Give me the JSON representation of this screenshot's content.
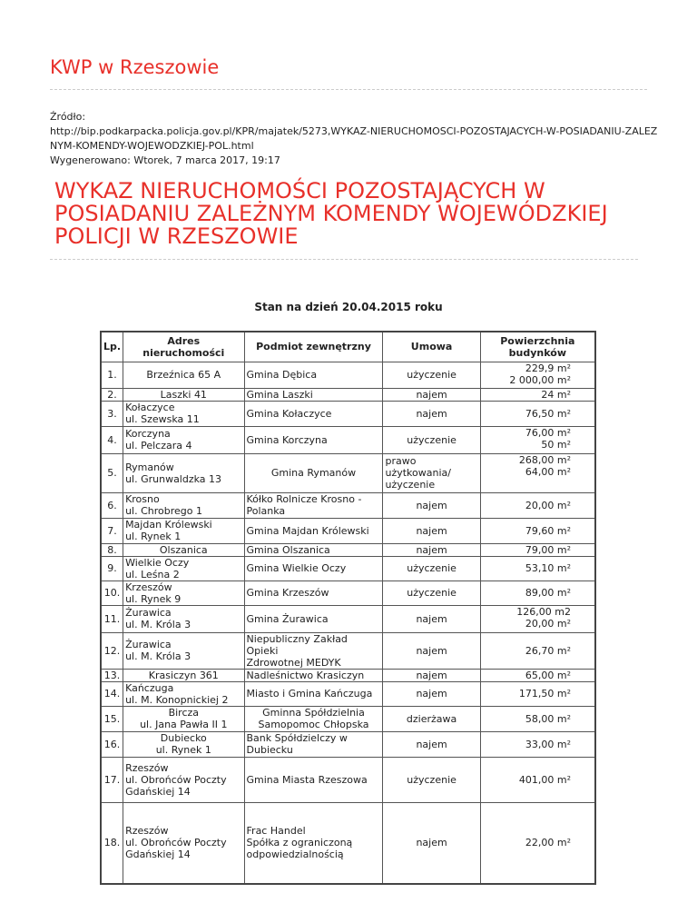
{
  "site_title": "KWP w Rzeszowie",
  "source_label": "Źródło:",
  "source_url": "http://bip.podkarpacka.policja.gov.pl/KPR/majatek/5273,WYKAZ-NIERUCHOMOSCI-POZOSTAJACYCH-W-POSIADANIU-ZALEZNYM-KOMENDY-WOJEWODZKIEJ-POL.html",
  "generated": "Wygenerowano: Wtorek, 7 marca 2017, 19:17",
  "title": "Wykaz nieruchomości pozostających w posiadaniu zależnym Komendy Wojewódzkiej Policji w Rzeszowie",
  "date_line": "Stan na dzień 20.04.2015 roku",
  "headers": [
    "Lp.",
    "Adres nieruchomości",
    "Podmiot zewnętrzny",
    "Umowa",
    "Powierzchnia budynków"
  ],
  "rows": [
    [
      "1.",
      "Brzeźnica 65 A",
      "Gmina Dębica",
      "użyczenie",
      "229,9 m²\n2 000,00 m²"
    ],
    [
      "2.",
      "Laszki 41",
      "Gmina Laszki",
      "najem",
      "24 m²"
    ],
    [
      "3.",
      "Kołaczyce\nul. Szewska 11",
      "Gmina Kołaczyce",
      "najem",
      "76,50 m²"
    ],
    [
      "4.",
      "Korczyna\nul. Pelczara 4",
      "Gmina Korczyna",
      "użyczenie",
      "76,00 m²\n50 m²"
    ],
    [
      "5.",
      "Rymanów\nul. Grunwaldzka 13",
      "Gmina Rymanów",
      "prawo\nużytkowania/\nużyczenie",
      "268,00 m²\n64,00 m²"
    ],
    [
      "6.",
      "Krosno\nul. Chrobrego 1",
      "Kółko Rolnicze Krosno -\nPolanka",
      "najem",
      "20,00 m²"
    ],
    [
      "7.",
      "Majdan Królewski\nul. Rynek 1",
      "Gmina Majdan Królewski",
      "najem",
      "79,60 m²"
    ],
    [
      "8.",
      "Olszanica",
      "Gmina Olszanica",
      "najem",
      "79,00 m²"
    ],
    [
      "9.",
      "Wielkie Oczy\nul. Leśna 2",
      "Gmina Wielkie Oczy",
      "użyczenie",
      "53,10 m²"
    ],
    [
      "10.",
      "Krzeszów\nul. Rynek 9",
      "Gmina Krzeszów",
      "użyczenie",
      "89,00 m²"
    ],
    [
      "11.",
      "Żurawica\nul. M. Króla 3",
      "Gmina Żurawica",
      "najem",
      "126,00 m2\n20,00 m²"
    ],
    [
      "12.",
      "Żurawica\nul. M. Króla 3",
      "Niepubliczny Zakład Opieki\nZdrowotnej MEDYK",
      "najem",
      "26,70 m²"
    ],
    [
      "13.",
      "Krasiczyn 361",
      "Nadleśnictwo Krasiczyn",
      "najem",
      "65,00 m²"
    ],
    [
      "14.",
      "Kańczuga\nul. M. Konopnickiej 2",
      "Miasto i Gmina Kańczuga",
      "najem",
      "171,50 m²"
    ],
    [
      "15.",
      "Bircza\nul. Jana Pawła II 1",
      "Gminna Spółdzielnia\nSamopomoc Chłopska",
      "dzierżawa",
      "58,00 m²"
    ],
    [
      "16.",
      "Dubiecko\nul. Rynek 1",
      "Bank Spółdzielczy w Dubiecku",
      "najem",
      "33,00 m²"
    ],
    [
      "17.",
      "Rzeszów\nul. Obrońców Poczty\nGdańskiej 14",
      "Gmina Miasta Rzeszowa",
      "użyczenie",
      "401,00 m²"
    ],
    [
      "18.",
      "Rzeszów\nul. Obrońców Poczty\nGdańskiej 14",
      "Frac Handel\nSpółka z ograniczoną\nodpowiedzialnością",
      "najem",
      "22,00 m²"
    ]
  ]
}
